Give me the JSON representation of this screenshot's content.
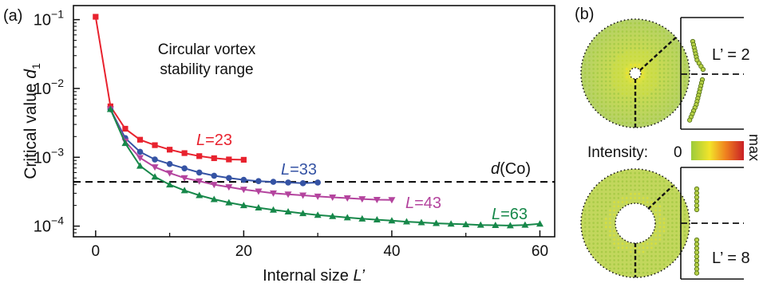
{
  "panel_a": {
    "label": "(a)",
    "annotation_line1": "Circular vortex",
    "annotation_line2": "stability range",
    "reference_line_label": "d(Co)"
  },
  "panel_b": {
    "label": "(b)",
    "top_profile_label": "L’ = 2",
    "bottom_profile_label": "L’ = 8",
    "intensity_label": "Intensity:",
    "intensity_min": "0",
    "intensity_max": "max"
  },
  "colors": {
    "L23": "#e8222e",
    "L33": "#3553a4",
    "L43": "#b4449e",
    "L63": "#17884a",
    "reference_line": "#000000",
    "intensity_low": "#9ccb3c",
    "intensity_mid": "#f2e42a",
    "intensity_high": "#c91f26"
  },
  "chart_data": {
    "type": "line",
    "xlabel": "Internal size L’",
    "ylabel": "Critical value d1",
    "xlim": [
      -3,
      62
    ],
    "ylim": [
      7e-05,
      0.16
    ],
    "yscale": "log",
    "xticks": [
      "0",
      "20",
      "40",
      "60"
    ],
    "yticks": [
      "10^-1",
      "10^-2",
      "10^-3",
      "10^-4"
    ],
    "grid": false,
    "reference_line": {
      "y": 0.00044,
      "label": "d(Co)"
    },
    "series": [
      {
        "name": "L=23",
        "marker": "square",
        "x": [
          0,
          2,
          4,
          6,
          8,
          10,
          12,
          14,
          16,
          18,
          20
        ],
        "y": [
          0.11,
          0.0055,
          0.0026,
          0.0018,
          0.0015,
          0.00129,
          0.00115,
          0.00104,
          0.00097,
          0.00093,
          0.00092
        ]
      },
      {
        "name": "L=33",
        "marker": "circle",
        "x": [
          2,
          4,
          6,
          8,
          10,
          12,
          14,
          16,
          18,
          20,
          22,
          24,
          26,
          28,
          30
        ],
        "y": [
          0.005,
          0.0019,
          0.0012,
          0.00093,
          0.0008,
          0.00069,
          0.0006,
          0.00054,
          0.0005,
          0.00047,
          0.00045,
          0.00044,
          0.00043,
          0.00042,
          0.00043
        ]
      },
      {
        "name": "L=43",
        "marker": "triangle-down",
        "x": [
          2,
          4,
          6,
          8,
          10,
          12,
          14,
          16,
          18,
          20,
          22,
          24,
          26,
          28,
          30,
          32,
          34,
          36,
          38,
          40
        ],
        "y": [
          0.005,
          0.0017,
          0.00098,
          0.00072,
          0.00059,
          0.0005,
          0.00045,
          0.0004,
          0.00037,
          0.00034,
          0.00032,
          0.0003,
          0.00029,
          0.00028,
          0.00027,
          0.000262,
          0.000255,
          0.000248,
          0.000242,
          0.00024
        ]
      },
      {
        "name": "L=63",
        "marker": "triangle-up",
        "x": [
          2,
          4,
          6,
          8,
          10,
          12,
          14,
          16,
          18,
          20,
          22,
          24,
          26,
          28,
          30,
          32,
          34,
          36,
          38,
          40,
          42,
          44,
          46,
          48,
          50,
          52,
          54,
          56,
          58,
          60
        ],
        "y": [
          0.005,
          0.0016,
          0.00075,
          0.00052,
          0.0004,
          0.00033,
          0.00028,
          0.000245,
          0.00022,
          0.0002,
          0.000185,
          0.000172,
          0.000162,
          0.000153,
          0.000145,
          0.000139,
          0.000133,
          0.000128,
          0.000124,
          0.00012,
          0.000116,
          0.000113,
          0.00011,
          0.000108,
          0.000106,
          0.000104,
          0.000103,
          0.000102,
          0.000104,
          0.000108
        ]
      }
    ]
  }
}
